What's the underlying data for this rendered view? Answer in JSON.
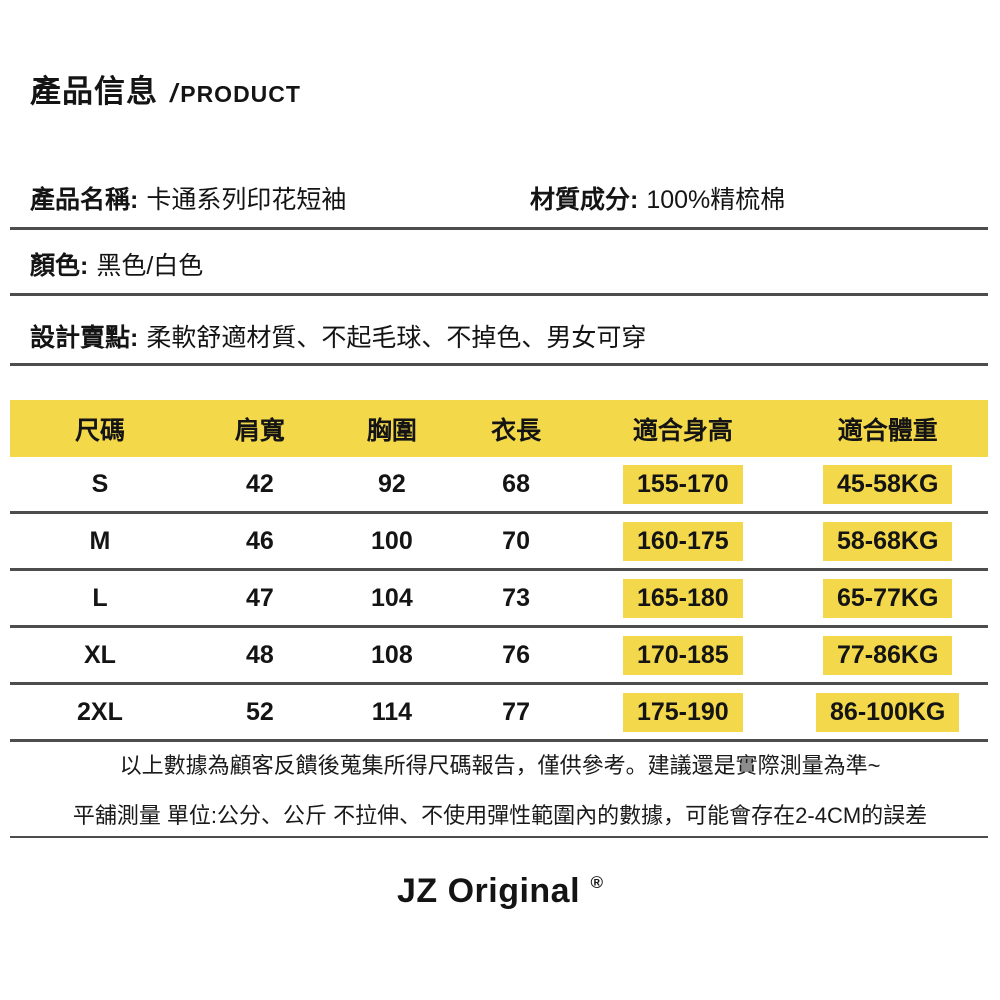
{
  "header": {
    "title_zh": "產品信息",
    "title_slash": "/",
    "title_en": "PRODUCT"
  },
  "info": {
    "name_label": "產品名稱:",
    "name_value": "卡通系列印花短袖",
    "material_label": "材質成分:",
    "material_value": "100%精梳棉",
    "color_label": "顏色:",
    "color_value": "黑色/白色",
    "selling_label": "設計賣點:",
    "selling_value": "柔軟舒適材質、不起毛球、不掉色、男女可穿"
  },
  "size_table": {
    "headers": [
      "尺碼",
      "肩寬",
      "胸圍",
      "衣長",
      "適合身高",
      "適合體重"
    ],
    "rows": [
      {
        "size": "S",
        "shoulder": "42",
        "chest": "92",
        "length": "68",
        "height": "155-170",
        "weight": "45-58KG"
      },
      {
        "size": "M",
        "shoulder": "46",
        "chest": "100",
        "length": "70",
        "height": "160-175",
        "weight": "58-68KG"
      },
      {
        "size": "L",
        "shoulder": "47",
        "chest": "104",
        "length": "73",
        "height": "165-180",
        "weight": "65-77KG"
      },
      {
        "size": "XL",
        "shoulder": "48",
        "chest": "108",
        "length": "76",
        "height": "170-185",
        "weight": "77-86KG"
      },
      {
        "size": "2XL",
        "shoulder": "52",
        "chest": "114",
        "length": "77",
        "height": "175-190",
        "weight": "86-100KG"
      }
    ]
  },
  "notes": {
    "line1": "以上數據為顧客反饋後蒐集所得尺碼報告，僅供參考。建議還是實際測量為準~",
    "line2": "平舖測量 單位:公分、公斤 不拉伸、不使用彈性範圍內的數據，可能會存在2-4CM的誤差"
  },
  "footer": {
    "brand": "JZ Original",
    "reg": "®"
  },
  "colors": {
    "header_yellow": "#f3d84a",
    "highlight_yellow": "#f2d84a",
    "divider_gray": "#4d4d4d",
    "text_black": "#141414"
  }
}
